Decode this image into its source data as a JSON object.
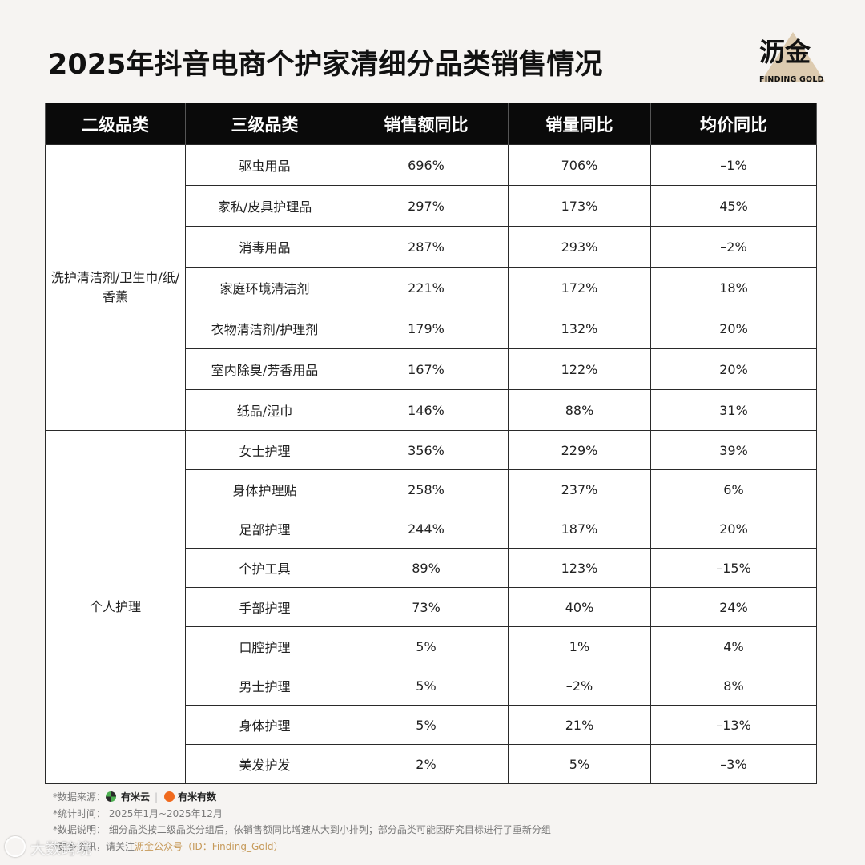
{
  "title": "2025年抖音电商个护家清细分品类销售情况",
  "logo": {
    "cn": "沥金",
    "en": "FINDING GOLD"
  },
  "table": {
    "headers": [
      "二级品类",
      "三级品类",
      "销售额同比",
      "销量同比",
      "均价同比"
    ],
    "groups": [
      {
        "name": "洗护清洁剂/卫生巾/纸/香薰",
        "rows": [
          [
            "驱虫用品",
            "696%",
            "706%",
            "–1%"
          ],
          [
            "家私/皮具护理品",
            "297%",
            "173%",
            "45%"
          ],
          [
            "消毒用品",
            "287%",
            "293%",
            "–2%"
          ],
          [
            "家庭环境清洁剂",
            "221%",
            "172%",
            "18%"
          ],
          [
            "衣物清洁剂/护理剂",
            "179%",
            "132%",
            "20%"
          ],
          [
            "室内除臭/芳香用品",
            "167%",
            "122%",
            "20%"
          ],
          [
            "纸品/湿巾",
            "146%",
            "88%",
            "31%"
          ]
        ]
      },
      {
        "name": "个人护理",
        "rows": [
          [
            "女士护理",
            "356%",
            "229%",
            "39%"
          ],
          [
            "身体护理贴",
            "258%",
            "237%",
            "6%"
          ],
          [
            "足部护理",
            "244%",
            "187%",
            "20%"
          ],
          [
            "个护工具",
            "89%",
            "123%",
            "–15%"
          ],
          [
            "手部护理",
            "73%",
            "40%",
            "24%"
          ],
          [
            "口腔护理",
            "5%",
            "1%",
            "4%"
          ],
          [
            "男士护理",
            "5%",
            "–2%",
            "8%"
          ],
          [
            "身体护理",
            "5%",
            "21%",
            "–13%"
          ],
          [
            "美发护发",
            "2%",
            "5%",
            "–3%"
          ]
        ]
      }
    ]
  },
  "footer": {
    "source_label": "*数据来源：",
    "source_brand1": "有米云",
    "source_separator": "|",
    "source_brand2": "有米有数",
    "period": "*统计时间：  2025年1月~2025年12月",
    "note": "*数据说明：  细分品类按二级品类分组后，依销售额同比增速从大到小排列；部分品类可能因研究目标进行了重新分组",
    "follow_prefix": "*更多资讯，请关注",
    "follow_account": "沥金公众号（ID：Finding_Gold）"
  },
  "watermark": "大数跨境",
  "colors": {
    "header_bg": "#0a0a0a",
    "accent_gold": "#c69a5a",
    "page_bg": "#f6f4f2"
  }
}
